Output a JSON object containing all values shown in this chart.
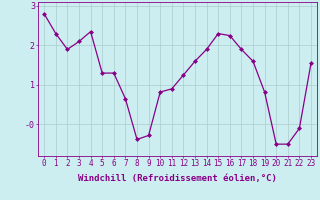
{
  "x": [
    0,
    1,
    2,
    3,
    4,
    5,
    6,
    7,
    8,
    9,
    10,
    11,
    12,
    13,
    14,
    15,
    16,
    17,
    18,
    19,
    20,
    21,
    22,
    23
  ],
  "y": [
    2.8,
    2.3,
    1.9,
    2.1,
    2.35,
    1.3,
    1.3,
    0.65,
    -0.38,
    -0.28,
    0.82,
    0.9,
    1.25,
    1.6,
    1.9,
    2.3,
    2.25,
    1.9,
    1.6,
    0.82,
    -0.5,
    -0.5,
    -0.1,
    1.55
  ],
  "line_color": "#880088",
  "marker": "D",
  "marker_size": 2.0,
  "bg_color": "#cdeef0",
  "grid_color": "#aacccc",
  "xlabel": "Windchill (Refroidissement éolien,°C)",
  "xlabel_fontsize": 6.5,
  "tick_fontsize": 5.5,
  "ylim": [
    -0.8,
    3.1
  ],
  "xlim": [
    -0.5,
    23.5
  ],
  "yticks": [
    0,
    1,
    2,
    3
  ],
  "ytick_labels": [
    "-0",
    "1",
    "2",
    "3"
  ]
}
